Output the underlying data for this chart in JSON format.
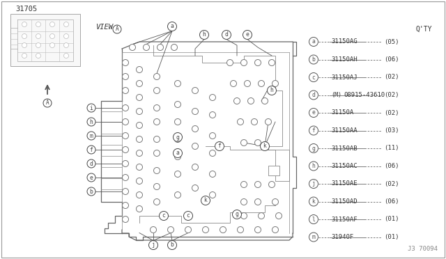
{
  "bg_color": "#ffffff",
  "title_num": "31705",
  "qty_header": "Q'TY",
  "diagram_ref": "J3 70094",
  "legend": [
    {
      "letter": "a",
      "part": "31150AG",
      "qty": "(05)"
    },
    {
      "letter": "b",
      "part": "31150AH",
      "qty": "(06)"
    },
    {
      "letter": "c",
      "part": "31150AJ",
      "qty": "(02)"
    },
    {
      "letter": "d",
      "part": "08915-43610",
      "qty": "(02)",
      "prefix": "(M)"
    },
    {
      "letter": "e",
      "part": "31150A",
      "qty": "(02)"
    },
    {
      "letter": "f",
      "part": "31150AA",
      "qty": "(03)"
    },
    {
      "letter": "g",
      "part": "31150AB",
      "qty": "(11)"
    },
    {
      "letter": "h",
      "part": "31150AC",
      "qty": "(06)"
    },
    {
      "letter": "j",
      "part": "31150AE",
      "qty": "(02)"
    },
    {
      "letter": "k",
      "part": "31150AD",
      "qty": "(06)"
    },
    {
      "letter": "l",
      "part": "31150AF",
      "qty": "(01)"
    },
    {
      "letter": "m",
      "part": "31940F",
      "qty": "(01)"
    }
  ],
  "line_color": "#666666",
  "circle_color": "#555555",
  "text_color": "#333333",
  "font_size_legend": 7.0,
  "font_size_labels": 6.5
}
